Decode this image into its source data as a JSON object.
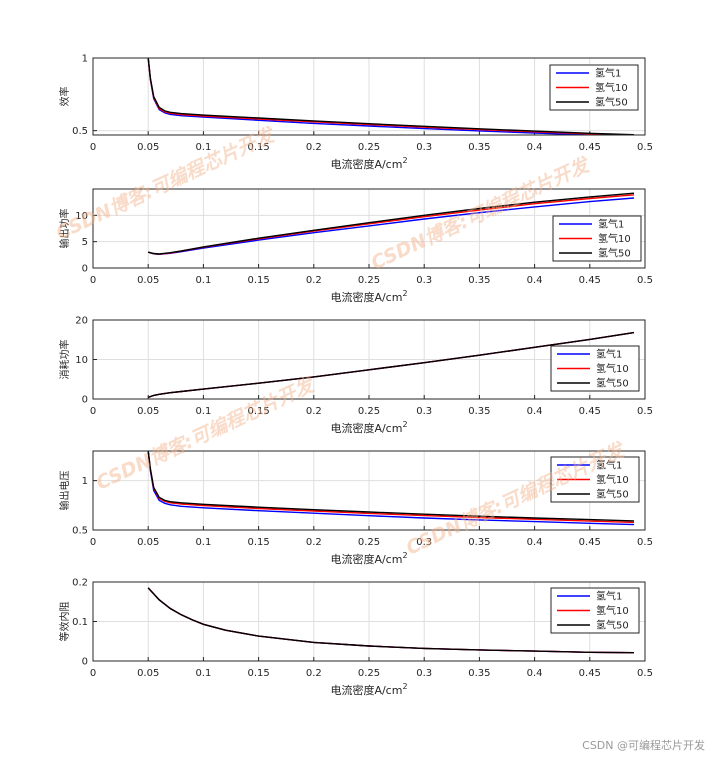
{
  "chart_data": [
    {
      "type": "line",
      "ylabel": "效率",
      "xlabel": "电流密度A/cm",
      "xlabel_sup": "2",
      "xlim": [
        0,
        0.5
      ],
      "ylim": [
        0.47,
        1
      ],
      "xticks": [
        "0",
        "0.05",
        "0.1",
        "0.15",
        "0.2",
        "0.25",
        "0.3",
        "0.35",
        "0.4",
        "0.45",
        "0.5"
      ],
      "yticks": [
        {
          "v": 0.5,
          "label": "0.5"
        },
        {
          "v": 1,
          "label": "1"
        }
      ],
      "grid": true,
      "legend": "top-right",
      "x": [
        0.05,
        0.052,
        0.055,
        0.06,
        0.065,
        0.07,
        0.08,
        0.1,
        0.15,
        0.2,
        0.25,
        0.3,
        0.35,
        0.4,
        0.45,
        0.49
      ],
      "series": [
        {
          "name": "氢气1",
          "color": "#0000ff",
          "values": [
            1.0,
            0.85,
            0.72,
            0.645,
            0.622,
            0.612,
            0.603,
            0.593,
            0.571,
            0.55,
            0.532,
            0.514,
            0.498,
            0.484,
            0.471,
            0.462
          ]
        },
        {
          "name": "氢气10",
          "color": "#ff0000",
          "values": [
            1.0,
            0.855,
            0.728,
            0.652,
            0.63,
            0.62,
            0.611,
            0.601,
            0.58,
            0.561,
            0.542,
            0.524,
            0.507,
            0.492,
            0.478,
            0.468
          ]
        },
        {
          "name": "氢气50",
          "color": "#000000",
          "values": [
            1.0,
            0.86,
            0.734,
            0.66,
            0.636,
            0.626,
            0.617,
            0.607,
            0.587,
            0.567,
            0.548,
            0.53,
            0.513,
            0.497,
            0.482,
            0.472
          ]
        }
      ]
    },
    {
      "type": "line",
      "ylabel": "输出功率",
      "xlabel": "电流密度A/cm",
      "xlabel_sup": "2",
      "xlim": [
        0,
        0.5
      ],
      "ylim": [
        0,
        15
      ],
      "xticks": [
        "0",
        "0.05",
        "0.1",
        "0.15",
        "0.2",
        "0.25",
        "0.3",
        "0.35",
        "0.4",
        "0.45",
        "0.5"
      ],
      "yticks": [
        {
          "v": 0,
          "label": "0"
        },
        {
          "v": 5,
          "label": "5"
        },
        {
          "v": 10,
          "label": "10"
        }
      ],
      "grid": true,
      "legend": "bottom-right",
      "x": [
        0.05,
        0.055,
        0.06,
        0.07,
        0.08,
        0.1,
        0.15,
        0.2,
        0.25,
        0.3,
        0.35,
        0.4,
        0.45,
        0.49
      ],
      "series": [
        {
          "name": "氢气1",
          "color": "#0000ff",
          "values": [
            3.0,
            2.7,
            2.6,
            2.8,
            3.1,
            3.8,
            5.3,
            6.7,
            8.0,
            9.3,
            10.5,
            11.6,
            12.6,
            13.3
          ]
        },
        {
          "name": "氢气10",
          "color": "#ff0000",
          "values": [
            3.0,
            2.72,
            2.62,
            2.85,
            3.2,
            3.95,
            5.55,
            7.0,
            8.4,
            9.75,
            11.0,
            12.2,
            13.2,
            13.9
          ]
        },
        {
          "name": "氢气50",
          "color": "#000000",
          "values": [
            3.0,
            2.75,
            2.65,
            2.9,
            3.25,
            4.0,
            5.65,
            7.15,
            8.6,
            10.0,
            11.3,
            12.5,
            13.5,
            14.2
          ]
        }
      ]
    },
    {
      "type": "line",
      "ylabel": "消耗功率",
      "xlabel": "电流密度A/cm",
      "xlabel_sup": "2",
      "xlim": [
        0,
        0.5
      ],
      "ylim": [
        0,
        20
      ],
      "xticks": [
        "0",
        "0.05",
        "0.1",
        "0.15",
        "0.2",
        "0.25",
        "0.3",
        "0.35",
        "0.4",
        "0.45",
        "0.5"
      ],
      "yticks": [
        {
          "v": 0,
          "label": "0"
        },
        {
          "v": 10,
          "label": "10"
        },
        {
          "v": 20,
          "label": "20"
        }
      ],
      "grid": true,
      "legend": "right",
      "x": [
        0.05,
        0.055,
        0.06,
        0.07,
        0.08,
        0.1,
        0.15,
        0.2,
        0.25,
        0.3,
        0.35,
        0.4,
        0.45,
        0.49
      ],
      "series": [
        {
          "name": "氢气1",
          "color": "#0000ff",
          "values": [
            0.4,
            0.9,
            1.2,
            1.6,
            1.9,
            2.5,
            4.0,
            5.6,
            7.4,
            9.2,
            11.1,
            13.1,
            15.1,
            16.8
          ]
        },
        {
          "name": "氢气10",
          "color": "#ff0000",
          "values": [
            0.4,
            0.9,
            1.2,
            1.6,
            1.9,
            2.5,
            4.0,
            5.6,
            7.4,
            9.2,
            11.1,
            13.1,
            15.1,
            16.8
          ]
        },
        {
          "name": "氢气50",
          "color": "#000000",
          "values": [
            0.4,
            0.9,
            1.2,
            1.6,
            1.9,
            2.5,
            4.0,
            5.6,
            7.4,
            9.2,
            11.1,
            13.1,
            15.1,
            16.8
          ]
        }
      ]
    },
    {
      "type": "line",
      "ylabel": "输出电压",
      "xlabel": "电流密度A/cm",
      "xlabel_sup": "2",
      "xlim": [
        0,
        0.5
      ],
      "ylim": [
        0.5,
        1.3
      ],
      "xticks": [
        "0",
        "0.05",
        "0.1",
        "0.15",
        "0.2",
        "0.25",
        "0.3",
        "0.35",
        "0.4",
        "0.45",
        "0.5"
      ],
      "yticks": [
        {
          "v": 0.5,
          "label": "0.5"
        },
        {
          "v": 1,
          "label": "1"
        }
      ],
      "grid": true,
      "legend": "top-right",
      "x": [
        0.05,
        0.052,
        0.055,
        0.06,
        0.065,
        0.07,
        0.08,
        0.1,
        0.15,
        0.2,
        0.25,
        0.3,
        0.35,
        0.4,
        0.45,
        0.49
      ],
      "series": [
        {
          "name": "氢气1",
          "color": "#0000ff",
          "values": [
            1.3,
            1.1,
            0.9,
            0.8,
            0.77,
            0.755,
            0.74,
            0.725,
            0.695,
            0.67,
            0.645,
            0.622,
            0.602,
            0.585,
            0.568,
            0.555
          ]
        },
        {
          "name": "氢气10",
          "color": "#ff0000",
          "values": [
            1.3,
            1.11,
            0.92,
            0.82,
            0.79,
            0.775,
            0.762,
            0.747,
            0.718,
            0.692,
            0.668,
            0.646,
            0.626,
            0.608,
            0.59,
            0.577
          ]
        },
        {
          "name": "氢气50",
          "color": "#000000",
          "values": [
            1.3,
            1.12,
            0.93,
            0.83,
            0.8,
            0.787,
            0.775,
            0.76,
            0.731,
            0.706,
            0.682,
            0.66,
            0.64,
            0.622,
            0.605,
            0.592
          ]
        }
      ]
    },
    {
      "type": "line",
      "ylabel": "等效内阻",
      "xlabel": "电流密度A/cm",
      "xlabel_sup": "2",
      "xlim": [
        0,
        0.5
      ],
      "ylim": [
        0,
        0.2
      ],
      "xticks": [
        "0",
        "0.05",
        "0.1",
        "0.15",
        "0.2",
        "0.25",
        "0.3",
        "0.35",
        "0.4",
        "0.45",
        "0.5"
      ],
      "yticks": [
        {
          "v": 0,
          "label": "0"
        },
        {
          "v": 0.1,
          "label": "0.1"
        },
        {
          "v": 0.2,
          "label": "0.2"
        }
      ],
      "grid": true,
      "legend": "top-right",
      "x": [
        0.05,
        0.06,
        0.07,
        0.08,
        0.09,
        0.1,
        0.12,
        0.15,
        0.2,
        0.25,
        0.3,
        0.35,
        0.4,
        0.45,
        0.49
      ],
      "series": [
        {
          "name": "氢气1",
          "color": "#0000ff",
          "values": [
            0.185,
            0.155,
            0.133,
            0.117,
            0.104,
            0.093,
            0.078,
            0.063,
            0.047,
            0.038,
            0.032,
            0.028,
            0.025,
            0.022,
            0.021
          ]
        },
        {
          "name": "氢气10",
          "color": "#ff0000",
          "values": [
            0.185,
            0.155,
            0.133,
            0.117,
            0.104,
            0.093,
            0.078,
            0.063,
            0.047,
            0.038,
            0.032,
            0.028,
            0.025,
            0.022,
            0.021
          ]
        },
        {
          "name": "氢气50",
          "color": "#000000",
          "values": [
            0.185,
            0.155,
            0.133,
            0.117,
            0.104,
            0.093,
            0.078,
            0.063,
            0.047,
            0.038,
            0.032,
            0.028,
            0.025,
            0.022,
            0.021
          ]
        }
      ]
    }
  ],
  "watermark": {
    "text": "CSDN博客:可编程芯片开发",
    "color": "#f3b088"
  },
  "footer": "CSDN @可编程芯片开发"
}
